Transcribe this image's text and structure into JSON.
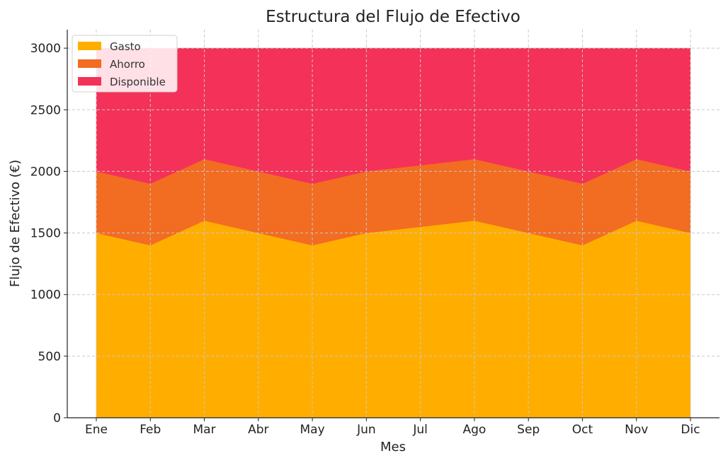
{
  "chart_data": {
    "type": "area",
    "stacked": true,
    "title": "Estructura del Flujo de Efectivo",
    "xlabel": "Mes",
    "ylabel": "Flujo de Efectivo (€)",
    "categories": [
      "Ene",
      "Feb",
      "Mar",
      "Abr",
      "May",
      "Jun",
      "Jul",
      "Ago",
      "Sep",
      "Oct",
      "Nov",
      "Dic"
    ],
    "ylim": [
      0,
      3150
    ],
    "yticks": [
      0,
      500,
      1000,
      1500,
      2000,
      2500,
      3000
    ],
    "grid": true,
    "legend_position": "top-left",
    "series": [
      {
        "name": "Gasto",
        "color": "#FFAE00",
        "values": [
          1500,
          1400,
          1600,
          1500,
          1400,
          1500,
          1550,
          1600,
          1500,
          1400,
          1600,
          1500
        ]
      },
      {
        "name": "Ahorro",
        "color": "#F26C22",
        "values": [
          500,
          500,
          500,
          500,
          500,
          500,
          500,
          500,
          500,
          500,
          500,
          500
        ]
      },
      {
        "name": "Disponible",
        "color": "#F43158",
        "values": [
          1000,
          1100,
          900,
          1000,
          1100,
          1000,
          950,
          900,
          1000,
          1100,
          900,
          1000
        ]
      }
    ]
  }
}
